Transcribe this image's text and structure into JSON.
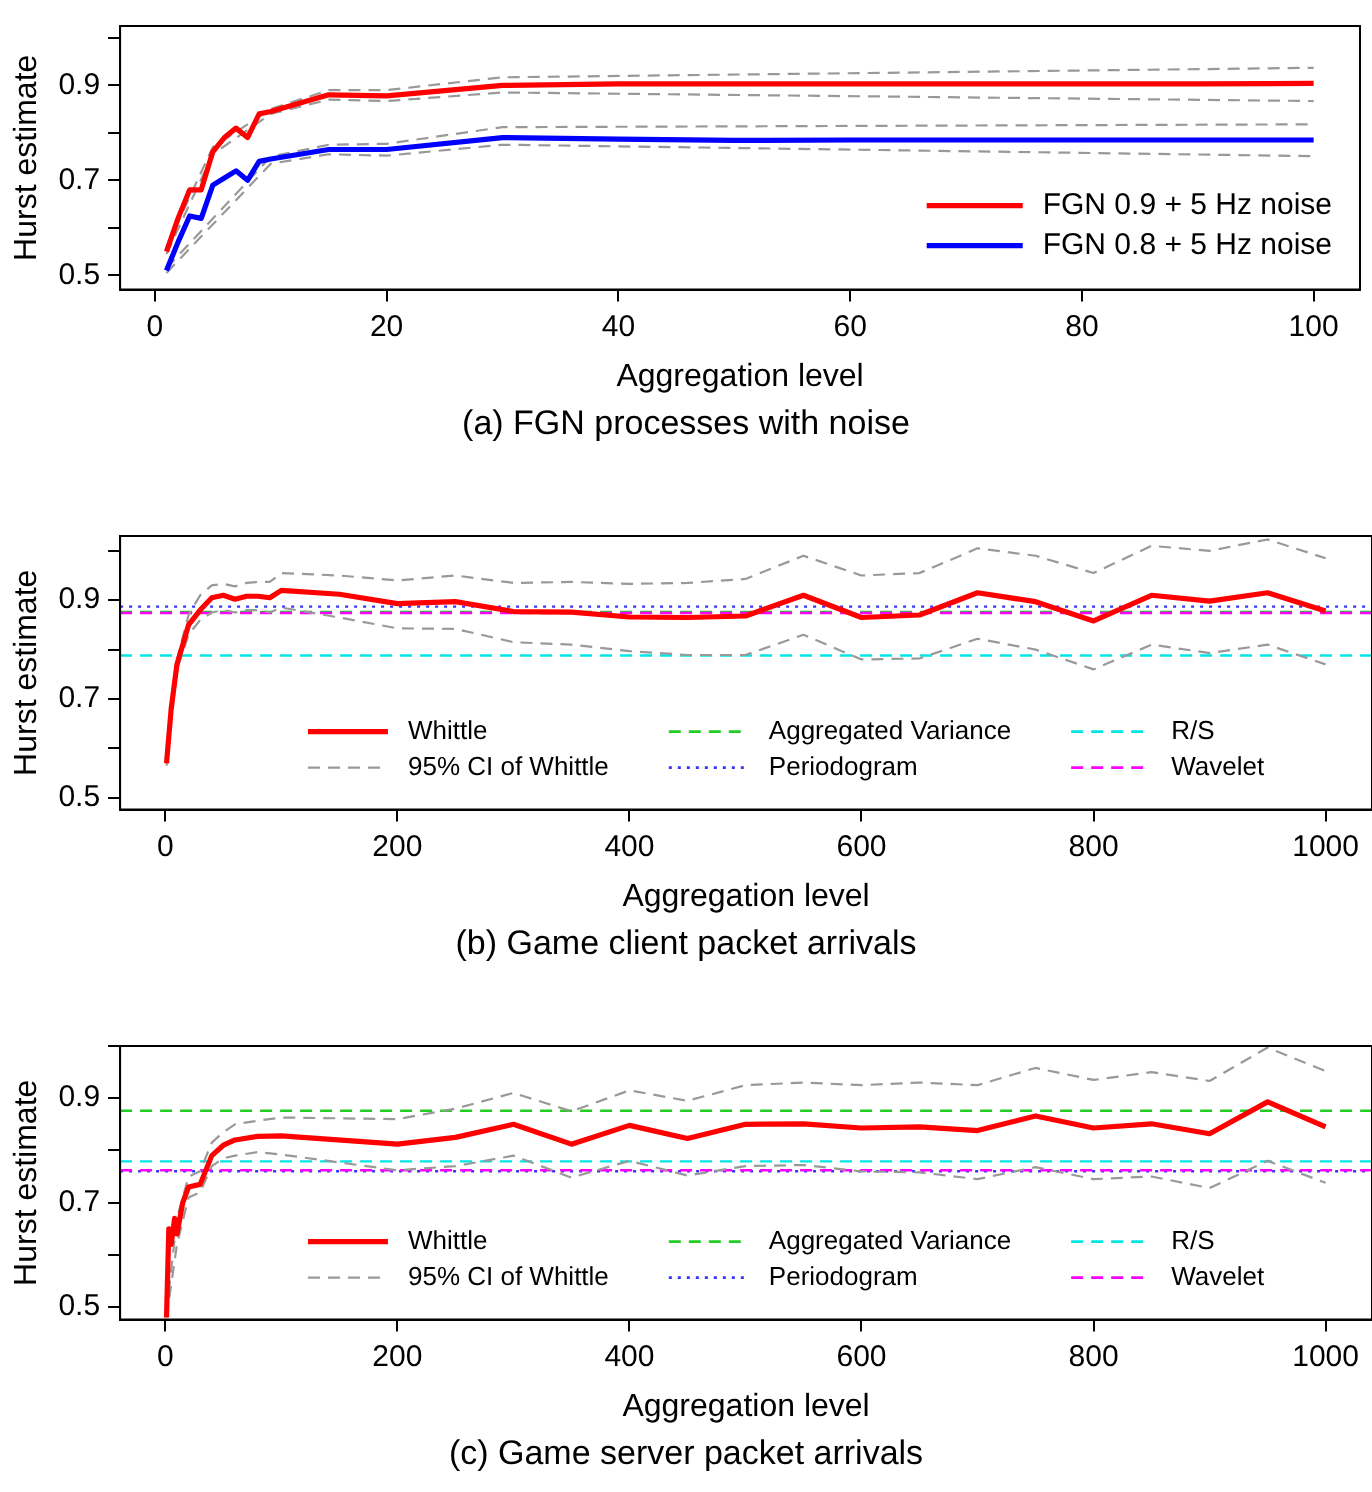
{
  "chart_data": [
    {
      "type": "line",
      "title": "(a) FGN processes with noise",
      "xlabel": "Aggregation level",
      "ylabel": "Hurst estimate",
      "xlim": [
        -3,
        104
      ],
      "ylim": [
        0.47,
        1.025
      ],
      "xticks": [
        0,
        20,
        40,
        60,
        80,
        100
      ],
      "yticks": [
        0.5,
        {
          "value": 0.6,
          "label": null
        },
        0.7,
        {
          "value": 0.8,
          "label": null
        },
        0.9,
        {
          "value": 1.0,
          "label": null
        }
      ],
      "legend": "bottom right",
      "series": [
        {
          "name": "FGN 0.9 + 5 Hz noise",
          "color": "#ff0000",
          "x": [
            1,
            2,
            3,
            4,
            5,
            6,
            7,
            8,
            9,
            10,
            15,
            20,
            30,
            40,
            50,
            60,
            70,
            80,
            90,
            100
          ],
          "values": [
            0.55,
            0.62,
            0.68,
            0.68,
            0.76,
            0.79,
            0.81,
            0.79,
            0.84,
            0.845,
            0.88,
            0.878,
            0.9,
            0.903,
            0.903,
            0.903,
            0.903,
            0.903,
            0.903,
            0.904
          ]
        },
        {
          "name": "FGN 0.8 + 5 Hz noise",
          "color": "#0000ff",
          "x": [
            1,
            2,
            3,
            4,
            5,
            6,
            7,
            8,
            9,
            10,
            15,
            20,
            30,
            40,
            50,
            60,
            70,
            80,
            90,
            100
          ],
          "values": [
            0.51,
            0.57,
            0.625,
            0.62,
            0.69,
            0.705,
            0.72,
            0.7,
            0.74,
            0.745,
            0.765,
            0.765,
            0.79,
            0.787,
            0.784,
            0.785,
            0.785,
            0.785,
            0.785,
            0.785
          ]
        },
        {
          "color": "#999999",
          "line_style": "dashed",
          "x": [
            1,
            5,
            10,
            15,
            20,
            30,
            100
          ],
          "values": [
            0.56,
            0.77,
            0.85,
            0.89,
            0.89,
            0.917,
            0.937
          ]
        },
        {
          "color": "#999999",
          "line_style": "dashed",
          "x": [
            1,
            5,
            10,
            15,
            20,
            30,
            100
          ],
          "values": [
            0.545,
            0.755,
            0.84,
            0.87,
            0.867,
            0.885,
            0.867
          ]
        },
        {
          "color": "#999999",
          "line_style": "dashed",
          "x": [
            1,
            10,
            15,
            20,
            30,
            100
          ],
          "values": [
            0.515,
            0.75,
            0.775,
            0.777,
            0.812,
            0.818
          ]
        },
        {
          "color": "#999999",
          "line_style": "dashed",
          "x": [
            1,
            10,
            15,
            20,
            30,
            100
          ],
          "values": [
            0.505,
            0.735,
            0.755,
            0.752,
            0.775,
            0.751
          ]
        }
      ]
    },
    {
      "type": "line",
      "title": "(b) Game client packet arrivals",
      "xlabel": "Aggregation level",
      "ylabel": "Hurst estimate",
      "xlim": [
        -39,
        1040
      ],
      "ylim": [
        0.476,
        1.03
      ],
      "xticks": [
        0,
        200,
        400,
        600,
        800,
        1000
      ],
      "yticks": [
        0.5,
        {
          "value": 0.6,
          "label": null
        },
        0.7,
        {
          "value": 0.8,
          "label": null
        },
        0.9,
        {
          "value": 1.0,
          "label": null
        }
      ],
      "legend": "bottom",
      "series": [
        {
          "name": "Whittle",
          "color": "#ff0000",
          "x": [
            1,
            5,
            10,
            20,
            30,
            40,
            50,
            60,
            70,
            80,
            90,
            100,
            150,
            200,
            250,
            300,
            350,
            400,
            450,
            500,
            550,
            600,
            650,
            700,
            750,
            800,
            850,
            900,
            950,
            1000
          ],
          "values": [
            0.57,
            0.68,
            0.77,
            0.85,
            0.88,
            0.905,
            0.91,
            0.902,
            0.908,
            0.908,
            0.905,
            0.92,
            0.912,
            0.893,
            0.897,
            0.877,
            0.876,
            0.866,
            0.865,
            0.868,
            0.91,
            0.865,
            0.87,
            0.915,
            0.897,
            0.858,
            0.91,
            0.898,
            0.915,
            0.878
          ]
        },
        {
          "name": "95% CI of Whittle",
          "color": "#999999",
          "line_style": "dashed",
          "x": [
            1,
            10,
            20,
            30,
            40,
            50,
            60,
            70,
            80,
            90,
            100,
            150,
            200,
            250,
            300,
            350,
            400,
            450,
            500,
            550,
            600,
            650,
            700,
            750,
            800,
            850,
            900,
            950,
            1000
          ],
          "values": [
            0.575,
            0.78,
            0.87,
            0.91,
            0.93,
            0.933,
            0.928,
            0.935,
            0.937,
            0.937,
            0.955,
            0.95,
            0.94,
            0.95,
            0.935,
            0.937,
            0.933,
            0.935,
            0.943,
            0.99,
            0.95,
            0.955,
            1.005,
            0.99,
            0.955,
            1.01,
            1.0,
            1.023,
            0.985
          ]
        },
        {
          "color": "#999999",
          "line_style": "dashed",
          "x": [
            1,
            10,
            20,
            30,
            40,
            50,
            60,
            70,
            80,
            90,
            100,
            150,
            200,
            250,
            300,
            350,
            400,
            450,
            500,
            550,
            600,
            650,
            700,
            750,
            800,
            850,
            900,
            950,
            1000
          ],
          "values": [
            0.565,
            0.76,
            0.83,
            0.86,
            0.875,
            0.88,
            0.875,
            0.88,
            0.88,
            0.875,
            0.885,
            0.865,
            0.843,
            0.842,
            0.815,
            0.81,
            0.797,
            0.789,
            0.789,
            0.83,
            0.78,
            0.782,
            0.822,
            0.8,
            0.76,
            0.81,
            0.793,
            0.81,
            0.77
          ]
        }
      ],
      "ref_lines": [
        {
          "axis": "y",
          "value": 0.876,
          "label": "Aggregated Variance",
          "color": "#22cc22",
          "line_style": "dashed"
        },
        {
          "axis": "y",
          "value": 0.887,
          "label": "Periodogram",
          "color": "#3333ff",
          "line_style": "dotted"
        },
        {
          "axis": "y",
          "value": 0.788,
          "label": "R/S",
          "color": "#00e5e5",
          "line_style": "dashed"
        },
        {
          "axis": "y",
          "value": 0.874,
          "label": "Wavelet",
          "color": "#ff00ff",
          "line_style": "dashed"
        }
      ]
    },
    {
      "type": "line",
      "title": "(c) Game server packet arrivals",
      "xlabel": "Aggregation level",
      "ylabel": "Hurst estimate",
      "xlim": [
        -39,
        1040
      ],
      "ylim": [
        0.476,
        1.0
      ],
      "xticks": [
        0,
        200,
        400,
        600,
        800,
        1000
      ],
      "yticks": [
        0.5,
        {
          "value": 0.6,
          "label": null
        },
        0.7,
        {
          "value": 0.8,
          "label": null
        },
        0.9,
        {
          "value": 1.0,
          "label": null
        }
      ],
      "legend": "bottom",
      "series": [
        {
          "name": "Whittle",
          "color": "#ff0000",
          "x": [
            1,
            3,
            5,
            8,
            10,
            15,
            20,
            30,
            40,
            50,
            60,
            80,
            100,
            200,
            250,
            300,
            350,
            400,
            450,
            500,
            550,
            600,
            650,
            700,
            750,
            800,
            850,
            900,
            950,
            1000
          ],
          "values": [
            0.48,
            0.65,
            0.62,
            0.67,
            0.64,
            0.7,
            0.73,
            0.735,
            0.79,
            0.81,
            0.82,
            0.827,
            0.828,
            0.812,
            0.825,
            0.85,
            0.812,
            0.848,
            0.823,
            0.85,
            0.851,
            0.843,
            0.845,
            0.838,
            0.866,
            0.843,
            0.851,
            0.832,
            0.893,
            0.845
          ]
        },
        {
          "name": "95% CI of Whittle",
          "color": "#999999",
          "line_style": "dashed",
          "x": [
            1,
            10,
            20,
            30,
            40,
            50,
            60,
            80,
            100,
            200,
            250,
            300,
            350,
            400,
            450,
            500,
            550,
            600,
            650,
            700,
            750,
            800,
            850,
            900,
            950,
            1000
          ],
          "values": [
            0.49,
            0.67,
            0.75,
            0.76,
            0.815,
            0.835,
            0.85,
            0.857,
            0.863,
            0.86,
            0.88,
            0.91,
            0.875,
            0.915,
            0.895,
            0.925,
            0.93,
            0.925,
            0.93,
            0.925,
            0.958,
            0.935,
            0.95,
            0.933,
            0.997,
            0.952
          ]
        },
        {
          "color": "#999999",
          "line_style": "dashed",
          "x": [
            1,
            10,
            20,
            30,
            40,
            50,
            60,
            80,
            100,
            200,
            250,
            300,
            350,
            400,
            450,
            500,
            550,
            600,
            650,
            700,
            750,
            800,
            850,
            900,
            950,
            1000
          ],
          "values": [
            0.48,
            0.62,
            0.71,
            0.72,
            0.77,
            0.785,
            0.79,
            0.797,
            0.792,
            0.762,
            0.77,
            0.79,
            0.748,
            0.78,
            0.752,
            0.77,
            0.772,
            0.76,
            0.758,
            0.745,
            0.768,
            0.745,
            0.75,
            0.728,
            0.78,
            0.738
          ]
        }
      ],
      "ref_lines": [
        {
          "axis": "y",
          "value": 0.876,
          "label": "Aggregated Variance",
          "color": "#22cc22",
          "line_style": "dashed"
        },
        {
          "axis": "y",
          "value": 0.76,
          "label": "Periodogram",
          "color": "#3333ff",
          "line_style": "dotted"
        },
        {
          "axis": "y",
          "value": 0.779,
          "label": "R/S",
          "color": "#00e5e5",
          "line_style": "dashed"
        },
        {
          "axis": "y",
          "value": 0.762,
          "label": "Wavelet",
          "color": "#ff00ff",
          "line_style": "dashed"
        }
      ]
    }
  ]
}
